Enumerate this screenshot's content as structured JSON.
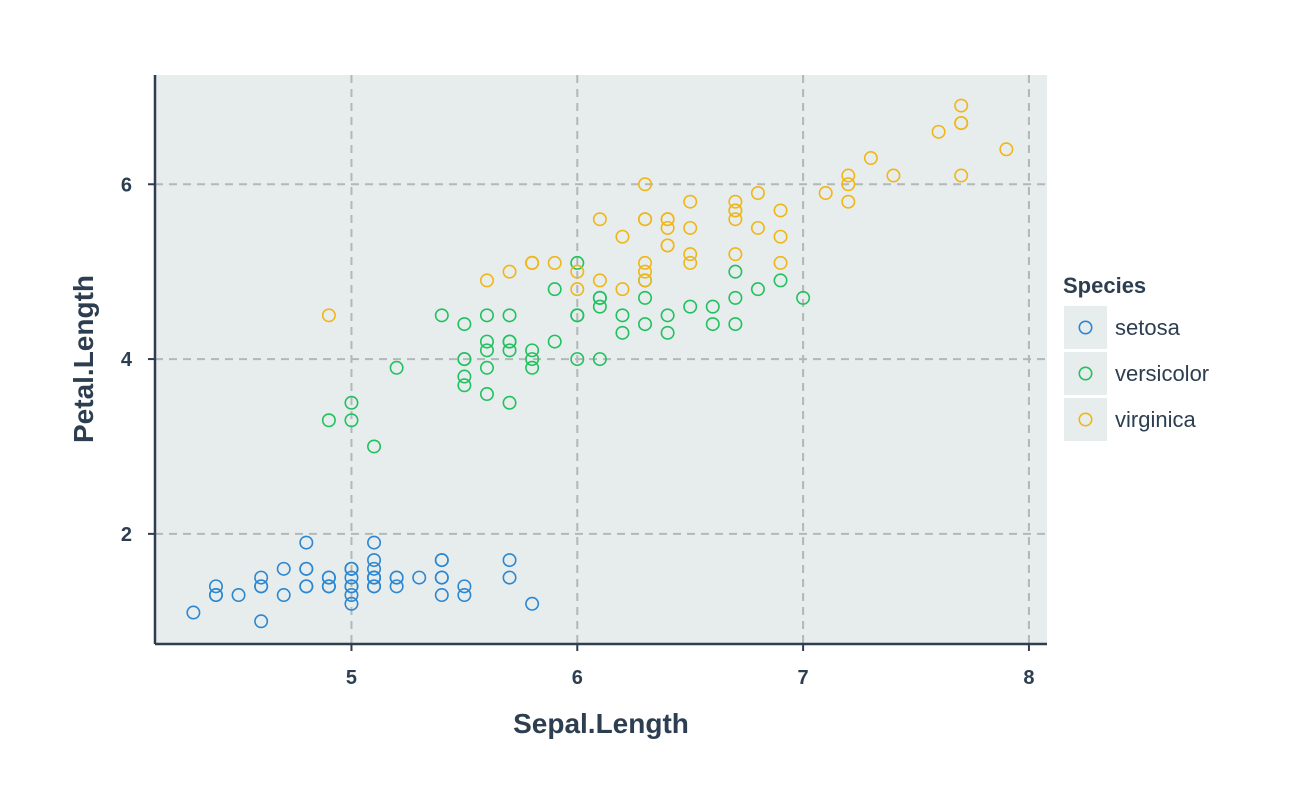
{
  "chart_data": {
    "type": "scatter",
    "title": "",
    "xlabel": "Sepal.Length",
    "ylabel": "Petal.Length",
    "xlim": [
      4.13,
      8.08
    ],
    "ylim": [
      0.74,
      7.25
    ],
    "xticks": [
      5,
      6,
      7,
      8
    ],
    "yticks": [
      2,
      4,
      6
    ],
    "grid": true,
    "legend": {
      "title": "Species",
      "placement": "right"
    },
    "colors": {
      "panel": "#e7ecec",
      "grid": "#b3b7b7",
      "axis": "#2c3e50",
      "setosa": "#2b87d1",
      "versicolor": "#20c15e",
      "virginica": "#f0b617"
    },
    "series": [
      {
        "name": "setosa",
        "color": "#2b87d1",
        "points": [
          [
            5.1,
            1.4
          ],
          [
            4.9,
            1.4
          ],
          [
            4.7,
            1.3
          ],
          [
            4.6,
            1.5
          ],
          [
            5.0,
            1.4
          ],
          [
            5.4,
            1.7
          ],
          [
            4.6,
            1.4
          ],
          [
            5.0,
            1.5
          ],
          [
            4.4,
            1.4
          ],
          [
            4.9,
            1.5
          ],
          [
            5.4,
            1.5
          ],
          [
            4.8,
            1.6
          ],
          [
            4.8,
            1.4
          ],
          [
            4.3,
            1.1
          ],
          [
            5.8,
            1.2
          ],
          [
            5.7,
            1.5
          ],
          [
            5.4,
            1.3
          ],
          [
            5.1,
            1.4
          ],
          [
            5.7,
            1.7
          ],
          [
            5.1,
            1.5
          ],
          [
            5.4,
            1.7
          ],
          [
            5.1,
            1.5
          ],
          [
            4.6,
            1.0
          ],
          [
            5.1,
            1.7
          ],
          [
            4.8,
            1.9
          ],
          [
            5.0,
            1.6
          ],
          [
            5.0,
            1.6
          ],
          [
            5.2,
            1.5
          ],
          [
            5.2,
            1.4
          ],
          [
            4.7,
            1.6
          ],
          [
            4.8,
            1.6
          ],
          [
            5.4,
            1.5
          ],
          [
            5.2,
            1.5
          ],
          [
            5.5,
            1.4
          ],
          [
            4.9,
            1.5
          ],
          [
            5.0,
            1.2
          ],
          [
            5.5,
            1.3
          ],
          [
            4.9,
            1.4
          ],
          [
            4.4,
            1.3
          ],
          [
            5.1,
            1.5
          ],
          [
            5.0,
            1.3
          ],
          [
            4.5,
            1.3
          ],
          [
            4.4,
            1.3
          ],
          [
            5.0,
            1.6
          ],
          [
            5.1,
            1.9
          ],
          [
            4.8,
            1.4
          ],
          [
            5.1,
            1.6
          ],
          [
            4.6,
            1.4
          ],
          [
            5.3,
            1.5
          ],
          [
            5.0,
            1.4
          ]
        ]
      },
      {
        "name": "versicolor",
        "color": "#20c15e",
        "points": [
          [
            7.0,
            4.7
          ],
          [
            6.4,
            4.5
          ],
          [
            6.9,
            4.9
          ],
          [
            5.5,
            4.0
          ],
          [
            6.5,
            4.6
          ],
          [
            5.7,
            4.5
          ],
          [
            6.3,
            4.7
          ],
          [
            4.9,
            3.3
          ],
          [
            6.6,
            4.6
          ],
          [
            5.2,
            3.9
          ],
          [
            5.0,
            3.5
          ],
          [
            5.9,
            4.2
          ],
          [
            6.0,
            4.0
          ],
          [
            6.1,
            4.7
          ],
          [
            5.6,
            3.6
          ],
          [
            6.7,
            4.4
          ],
          [
            5.6,
            4.5
          ],
          [
            5.8,
            4.1
          ],
          [
            6.2,
            4.5
          ],
          [
            5.6,
            3.9
          ],
          [
            5.9,
            4.8
          ],
          [
            6.1,
            4.0
          ],
          [
            6.3,
            4.9
          ],
          [
            6.1,
            4.7
          ],
          [
            6.4,
            4.3
          ],
          [
            6.6,
            4.4
          ],
          [
            6.8,
            4.8
          ],
          [
            6.7,
            5.0
          ],
          [
            6.0,
            4.5
          ],
          [
            5.7,
            3.5
          ],
          [
            5.5,
            3.8
          ],
          [
            5.5,
            3.7
          ],
          [
            5.8,
            3.9
          ],
          [
            6.0,
            5.1
          ],
          [
            5.4,
            4.5
          ],
          [
            6.0,
            4.5
          ],
          [
            6.7,
            4.7
          ],
          [
            6.3,
            4.4
          ],
          [
            5.6,
            4.1
          ],
          [
            5.5,
            4.0
          ],
          [
            5.5,
            4.4
          ],
          [
            6.1,
            4.6
          ],
          [
            5.8,
            4.0
          ],
          [
            5.0,
            3.3
          ],
          [
            5.6,
            4.2
          ],
          [
            5.7,
            4.2
          ],
          [
            5.7,
            4.2
          ],
          [
            6.2,
            4.3
          ],
          [
            5.1,
            3.0
          ],
          [
            5.7,
            4.1
          ]
        ]
      },
      {
        "name": "virginica",
        "color": "#f0b617",
        "points": [
          [
            6.3,
            6.0
          ],
          [
            5.8,
            5.1
          ],
          [
            7.1,
            5.9
          ],
          [
            6.3,
            5.6
          ],
          [
            6.5,
            5.8
          ],
          [
            7.6,
            6.6
          ],
          [
            4.9,
            4.5
          ],
          [
            7.3,
            6.3
          ],
          [
            6.7,
            5.8
          ],
          [
            7.2,
            6.1
          ],
          [
            6.5,
            5.1
          ],
          [
            6.4,
            5.3
          ],
          [
            6.8,
            5.5
          ],
          [
            5.7,
            5.0
          ],
          [
            5.8,
            5.1
          ],
          [
            6.4,
            5.3
          ],
          [
            6.5,
            5.5
          ],
          [
            7.7,
            6.7
          ],
          [
            7.7,
            6.9
          ],
          [
            6.0,
            5.0
          ],
          [
            6.9,
            5.7
          ],
          [
            5.6,
            4.9
          ],
          [
            7.7,
            6.7
          ],
          [
            6.3,
            4.9
          ],
          [
            6.7,
            5.7
          ],
          [
            7.2,
            6.0
          ],
          [
            6.2,
            4.8
          ],
          [
            6.1,
            4.9
          ],
          [
            6.4,
            5.6
          ],
          [
            7.2,
            5.8
          ],
          [
            7.4,
            6.1
          ],
          [
            7.9,
            6.4
          ],
          [
            6.4,
            5.6
          ],
          [
            6.3,
            5.1
          ],
          [
            6.1,
            5.6
          ],
          [
            7.7,
            6.1
          ],
          [
            6.3,
            5.6
          ],
          [
            6.4,
            5.5
          ],
          [
            6.0,
            4.8
          ],
          [
            6.9,
            5.4
          ],
          [
            6.7,
            5.6
          ],
          [
            6.9,
            5.1
          ],
          [
            5.8,
            5.1
          ],
          [
            6.8,
            5.9
          ],
          [
            6.7,
            5.7
          ],
          [
            6.7,
            5.2
          ],
          [
            6.3,
            5.0
          ],
          [
            6.5,
            5.2
          ],
          [
            6.2,
            5.4
          ],
          [
            5.9,
            5.1
          ]
        ]
      }
    ]
  }
}
